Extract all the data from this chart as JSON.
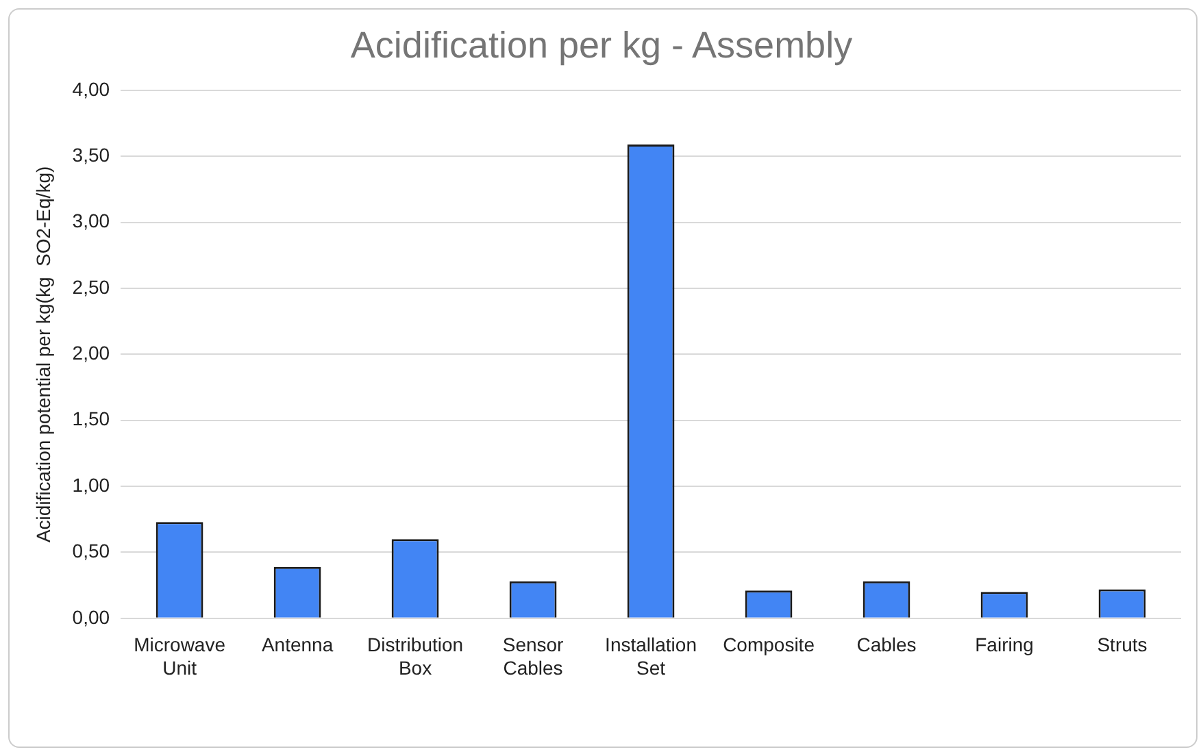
{
  "chart_data": {
    "type": "bar",
    "title": "Acidification per kg - Assembly",
    "ylabel": "Acidification potential per kg(kg  SO2-Eq/kg)",
    "categories": [
      "Microwave Unit",
      "Antenna",
      "Distribution Box",
      "Sensor Cables",
      "Installation Set",
      "Composite",
      "Cables",
      "Fairing",
      "Struts"
    ],
    "values": [
      0.73,
      0.39,
      0.6,
      0.28,
      3.59,
      0.21,
      0.28,
      0.2,
      0.22
    ],
    "color": "#4285f4",
    "ylim": [
      0,
      4
    ],
    "yticks": [
      {
        "value": 0,
        "label": "0,00"
      },
      {
        "value": 0.5,
        "label": "0,50"
      },
      {
        "value": 1,
        "label": "1,00"
      },
      {
        "value": 1.5,
        "label": "1,50"
      },
      {
        "value": 2,
        "label": "2,00"
      },
      {
        "value": 2.5,
        "label": "2,50"
      },
      {
        "value": 3,
        "label": "3,00"
      },
      {
        "value": 3.5,
        "label": "3,50"
      },
      {
        "value": 4,
        "label": "4,00"
      }
    ],
    "grid": "y"
  }
}
